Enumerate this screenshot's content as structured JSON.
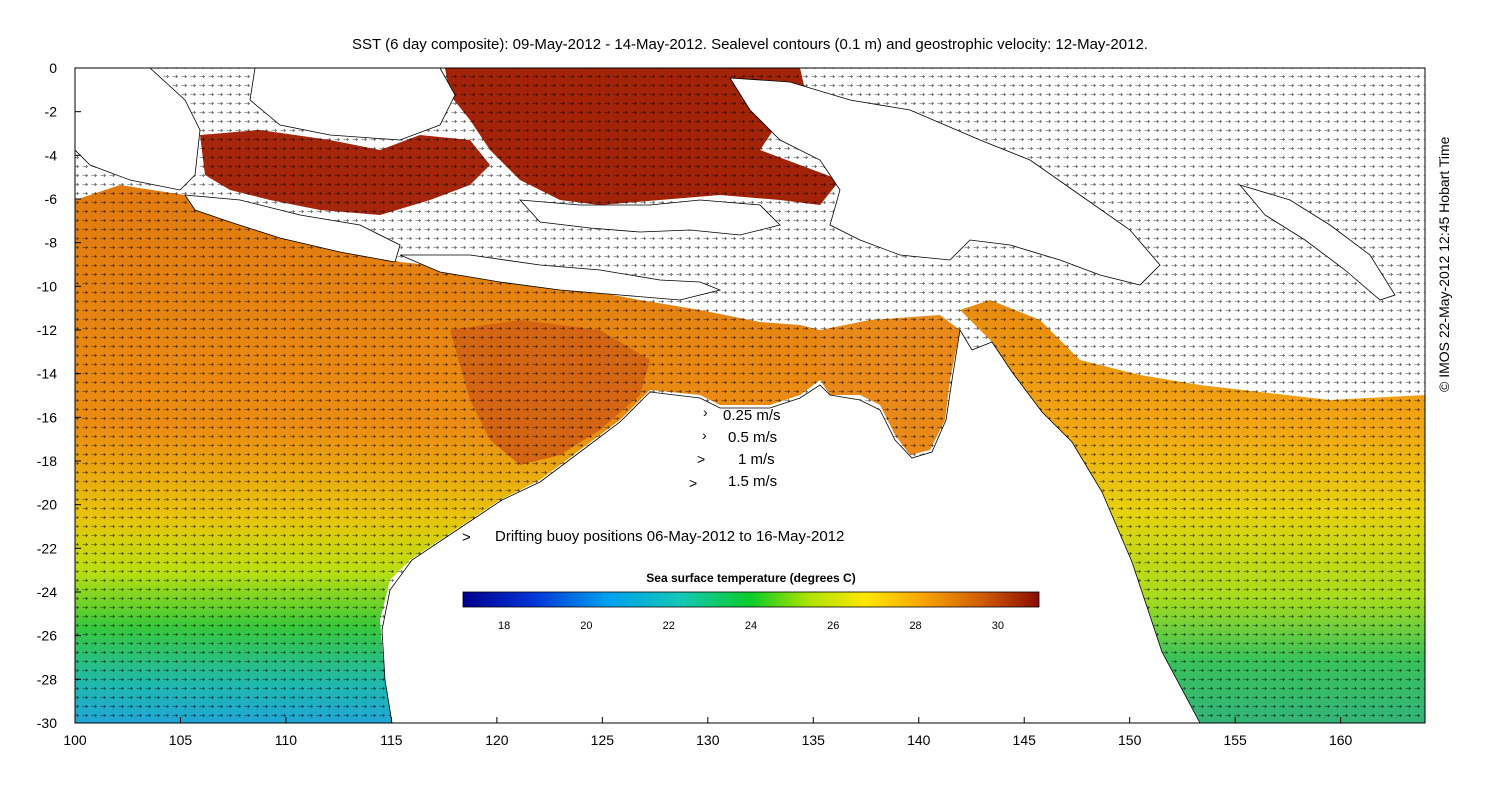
{
  "title": "SST (6 day composite): 09-May-2012 - 14-May-2012. Sealevel contours (0.1 m) and geostrophic velocity: 12-May-2012.",
  "credit": "© IMOS 22-May-2012 12:45 Hobart Time",
  "x_axis": {
    "range": [
      100,
      164
    ],
    "ticks": [
      "100",
      "105",
      "110",
      "115",
      "120",
      "125",
      "130",
      "135",
      "140",
      "145",
      "150",
      "155",
      "160"
    ]
  },
  "y_axis": {
    "range": [
      -30,
      0
    ],
    "ticks": [
      "0",
      "-2",
      "-4",
      "-6",
      "-8",
      "-10",
      "-12",
      "-14",
      "-16",
      "-18",
      "-20",
      "-22",
      "-24",
      "-26",
      "-28",
      "-30"
    ]
  },
  "velocity_legend": [
    {
      "label": "0.25 m/s",
      "speed": 0.25
    },
    {
      "label": "0.5 m/s",
      "speed": 0.5
    },
    {
      "label": "1 m/s",
      "speed": 1
    },
    {
      "label": "1.5 m/s",
      "speed": 1.5
    }
  ],
  "buoy_legend": {
    "symbol": ">",
    "label": "Drifting buoy positions 06-May-2012 to 16-May-2012",
    "color": "#ff33cc"
  },
  "colorbar": {
    "title": "Sea surface temperature (degrees C)",
    "range": [
      17,
      31
    ],
    "ticks": [
      "18",
      "20",
      "22",
      "24",
      "26",
      "28",
      "30"
    ]
  },
  "colors": {
    "land": "#ffffff",
    "coast": "#000000",
    "sst_high": "#8b0f00",
    "sst_mid": "#e5850a",
    "sst_low": "#1e9ed8",
    "buoy": "#ff33cc"
  }
}
